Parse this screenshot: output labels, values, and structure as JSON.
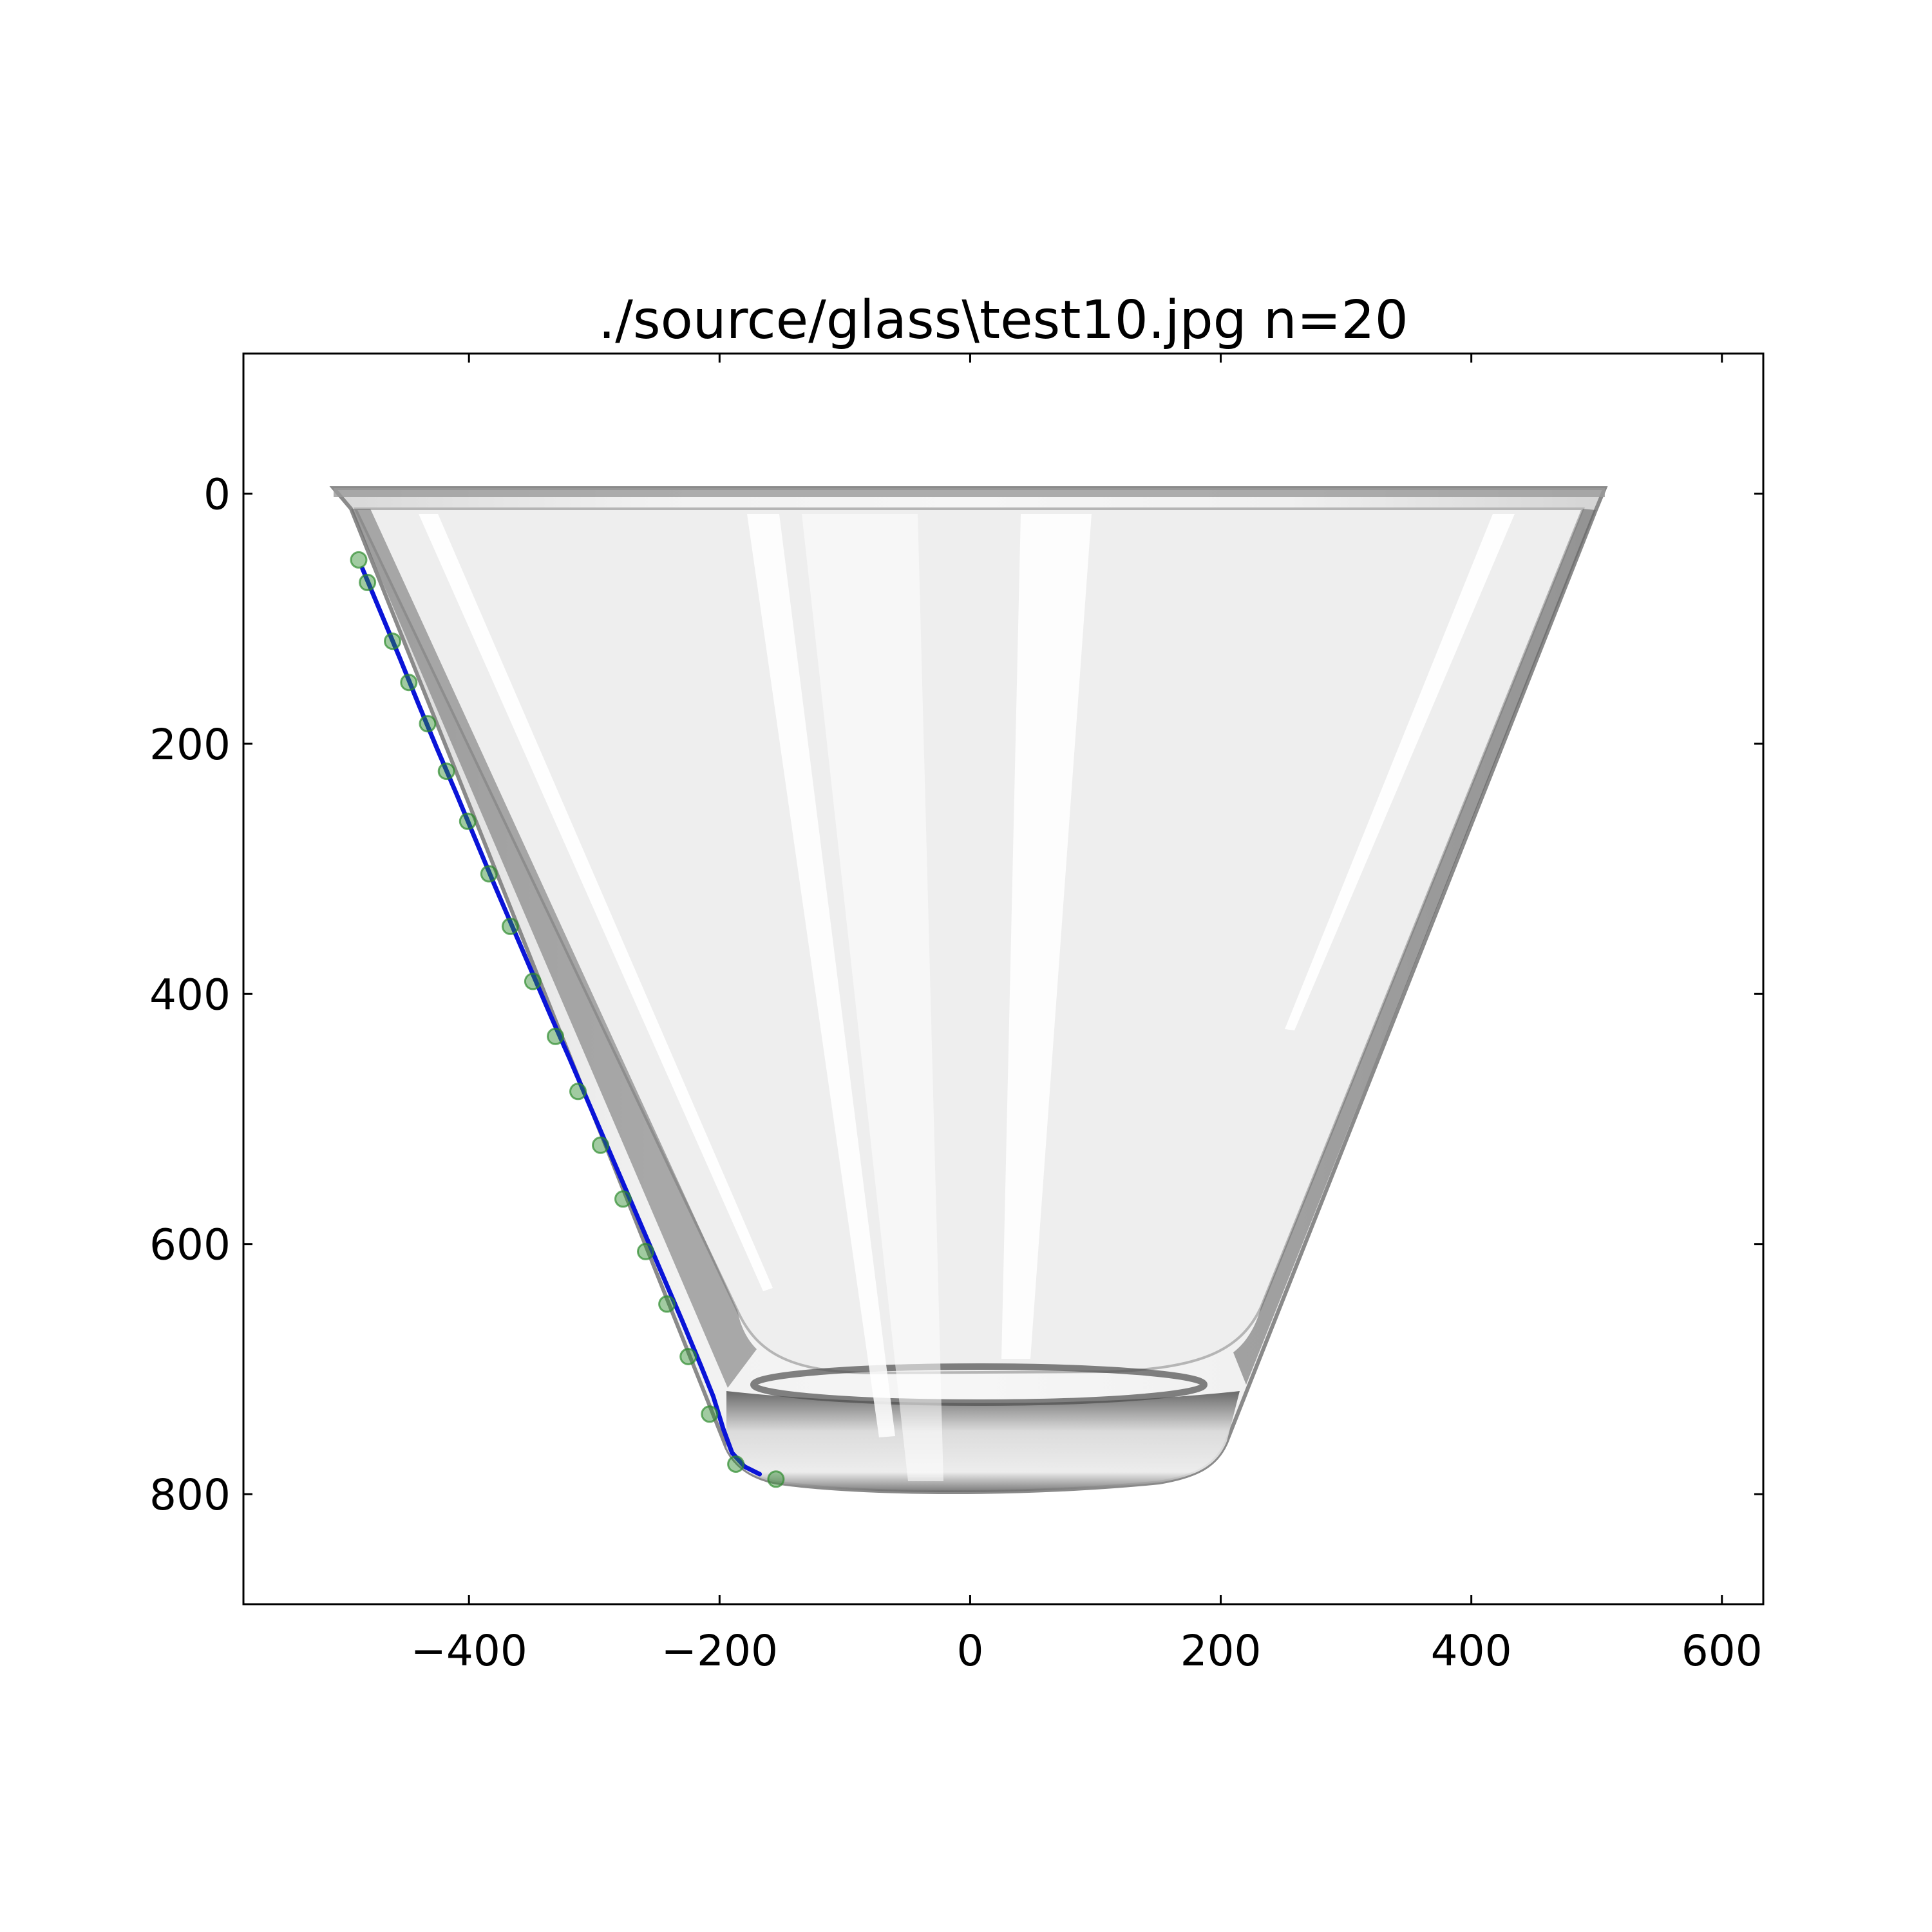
{
  "chart_data": {
    "type": "line",
    "title": "./source/glass\\test10.jpg n=20",
    "xlabel": "",
    "ylabel": "",
    "xlim": [
      -580,
      633
    ],
    "ylim": [
      888,
      -112
    ],
    "y_inverted": true,
    "grid": false,
    "legend": "none",
    "xticks": [
      {
        "value": -400,
        "label": "−400"
      },
      {
        "value": -200,
        "label": "−200"
      },
      {
        "value": 0,
        "label": "0"
      },
      {
        "value": 200,
        "label": "200"
      },
      {
        "value": 400,
        "label": "400"
      },
      {
        "value": 600,
        "label": "600"
      }
    ],
    "yticks": [
      {
        "value": 0,
        "label": "0"
      },
      {
        "value": 200,
        "label": "200"
      },
      {
        "value": 400,
        "label": "400"
      },
      {
        "value": 600,
        "label": "600"
      },
      {
        "value": 800,
        "label": "800"
      }
    ],
    "background_image": "photo of a stemless martini glass",
    "series": [
      {
        "kind": "points",
        "color": "#2e8b2e",
        "x": [
          -488,
          -481,
          -461,
          -448,
          -433,
          -418,
          -401,
          -384,
          -367,
          -349,
          -331,
          -313,
          -295,
          -277,
          -259,
          -242,
          -225,
          -208,
          -187,
          -155
        ],
        "y": [
          53,
          71,
          118,
          151,
          184,
          222,
          262,
          304,
          346,
          390,
          434,
          478,
          521,
          564,
          606,
          648,
          690,
          736,
          776,
          788
        ]
      },
      {
        "kind": "line",
        "color": "#0a14d8",
        "x": [
          -485,
          -470,
          -455,
          -440,
          -425,
          -410,
          -395,
          -380,
          -365,
          -350,
          -335,
          -320,
          -305,
          -290,
          -275,
          -260,
          -245,
          -230,
          -215,
          -205,
          -197,
          -190,
          -180,
          -168
        ],
        "y": [
          60,
          96,
          132,
          169,
          205,
          240,
          276,
          312,
          347,
          382,
          417,
          451,
          486,
          521,
          556,
          591,
          626,
          661,
          697,
          722,
          748,
          767,
          778,
          784
        ]
      }
    ]
  }
}
